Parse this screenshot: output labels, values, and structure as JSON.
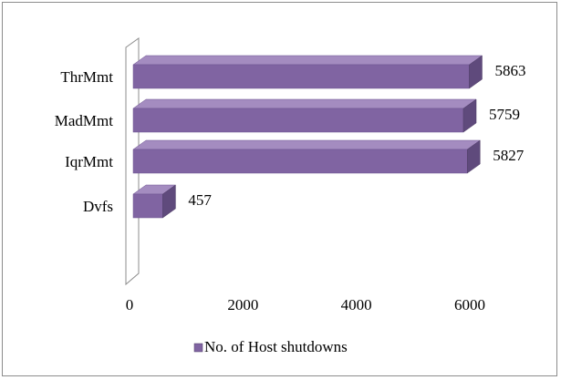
{
  "chart_data": {
    "type": "bar",
    "orientation": "horizontal",
    "style": "3d",
    "categories": [
      "Dvfs",
      "IqrMmt",
      "MadMmt",
      "ThrMmt"
    ],
    "series": [
      {
        "name": "No. of Host shutdowns",
        "values": [
          457,
          5827,
          5759,
          5863
        ],
        "color": "#8064a2"
      }
    ],
    "data_labels": [
      "457",
      "5827",
      "5759",
      "5863"
    ],
    "x_ticks": [
      "0",
      "2000",
      "4000",
      "6000"
    ],
    "xlim": [
      0,
      6000
    ],
    "grid": false,
    "legend": {
      "position": "bottom",
      "label": "No. of Host shutdowns"
    },
    "title": "",
    "xlabel": "",
    "ylabel": ""
  },
  "colors": {
    "bar_front": "#8064a2",
    "bar_top": "#a48cc0",
    "bar_side": "#5f4a7c",
    "wall": "#ffffff",
    "wall_stroke": "#8c8c8c"
  }
}
